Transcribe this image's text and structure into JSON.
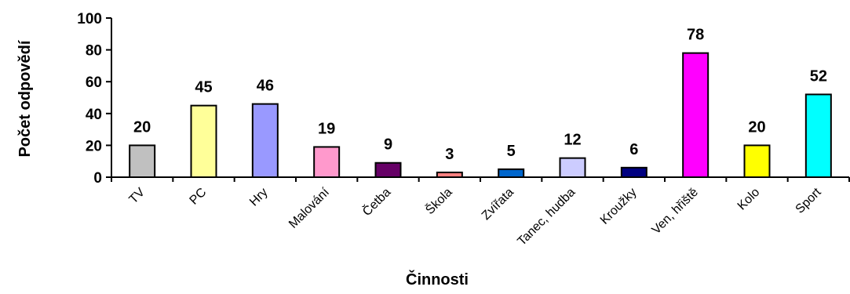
{
  "chart_data": {
    "type": "bar",
    "title": "",
    "xlabel": "Činnosti",
    "ylabel": "Počet odpovědí",
    "ylim": [
      0,
      100
    ],
    "yticks": [
      0,
      20,
      40,
      60,
      80,
      100
    ],
    "grid": false,
    "legend": "none",
    "categories": [
      "TV",
      "PC",
      "Hry",
      "Malování",
      "Četba",
      "Škola",
      "Zvířata",
      "Tanec, hudba",
      "Kroužky",
      "Ven, hřiště",
      "Kolo",
      "Sport"
    ],
    "values": [
      20,
      45,
      46,
      19,
      9,
      3,
      5,
      12,
      6,
      78,
      20,
      52
    ],
    "colors": [
      "#c0c0c0",
      "#ffff99",
      "#9999ff",
      "#ff99cc",
      "#660066",
      "#ff8080",
      "#0066cc",
      "#ccccff",
      "#000080",
      "#ff00ff",
      "#ffff00",
      "#00ffff"
    ]
  }
}
